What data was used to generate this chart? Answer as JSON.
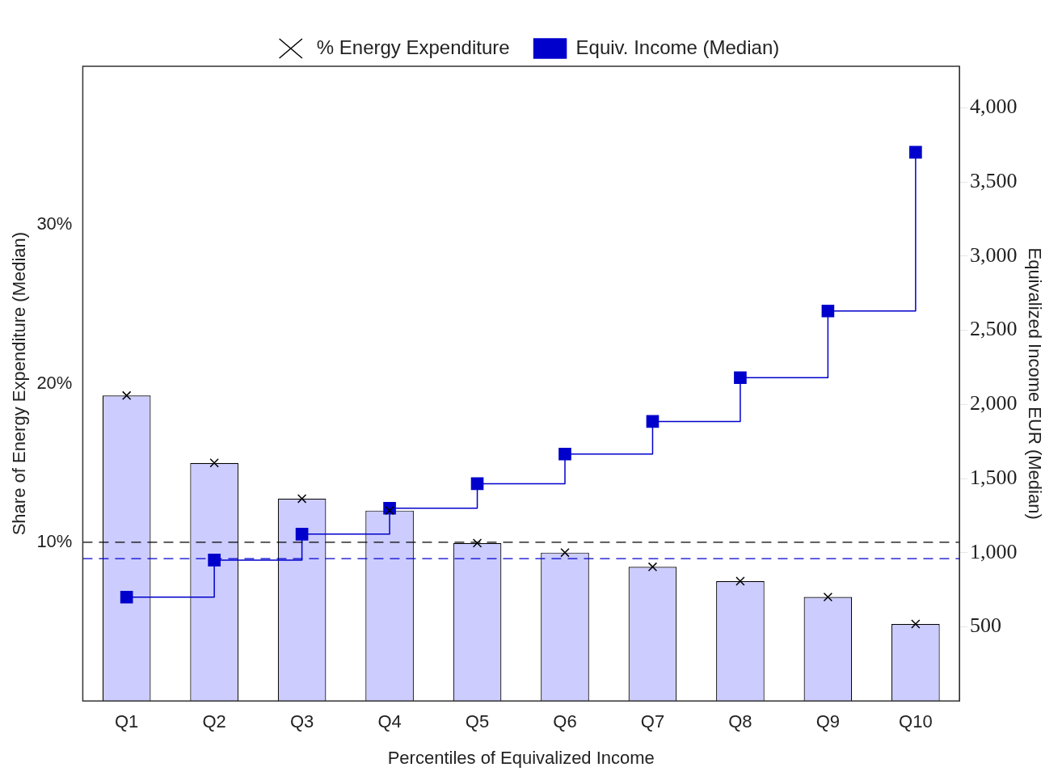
{
  "chart_data": {
    "type": "bar",
    "xlabel": "Percentiles of Equivalized Income",
    "ylabel": "Share of Energy Expenditure (Median)",
    "y2label": "Equivalized Income EUR (Median)",
    "categories": [
      "Q1",
      "Q2",
      "Q3",
      "Q4",
      "Q5",
      "Q6",
      "Q7",
      "Q8",
      "Q9",
      "Q10"
    ],
    "series": [
      {
        "color": "#ccccff",
        "values": [
          19.25,
          15.0,
          12.75,
          12.0,
          9.95,
          9.35,
          8.45,
          7.55,
          6.55,
          4.85
        ]
      },
      {
        "type": "scatter",
        "name": "% Energy Expenditure",
        "color": "#000000",
        "marker": "cross",
        "values": [
          19.25,
          15.0,
          12.75,
          12.0,
          9.95,
          9.35,
          8.45,
          7.55,
          6.55,
          4.85
        ]
      },
      {
        "type": "step",
        "name": "Equiv. Income (Median)",
        "color": "#0000cc",
        "marker": "square",
        "axis": "y2",
        "values": [
          700,
          950,
          1125,
          1300,
          1465,
          1665,
          1885,
          2180,
          2630,
          3700
        ]
      }
    ],
    "ylim": [
      0,
      40
    ],
    "yticks": [
      {
        "value": 10,
        "label": "10%"
      },
      {
        "value": 20,
        "label": "20%"
      },
      {
        "value": 30,
        "label": "30%"
      }
    ],
    "y2lim": [
      0,
      4280
    ],
    "y2ticks": [
      500,
      {
        "value": 1000,
        "label": "1,000"
      },
      {
        "value": 1500,
        "label": "1,500"
      },
      {
        "value": 2000,
        "label": "2,000"
      },
      {
        "value": 2500,
        "label": "2,500"
      },
      {
        "value": 3000,
        "label": "3,000"
      },
      {
        "value": 3500,
        "label": "3,500"
      },
      {
        "value": 4000,
        "label": "4,000"
      }
    ],
    "ref_lines": [
      {
        "axis": "y",
        "value": 10,
        "color": "#000000",
        "line_style": "dashed"
      },
      {
        "axis": "y2",
        "value": 960,
        "color": "#0000cc",
        "line_style": "dashed"
      }
    ],
    "legend": "top",
    "grid": false
  }
}
